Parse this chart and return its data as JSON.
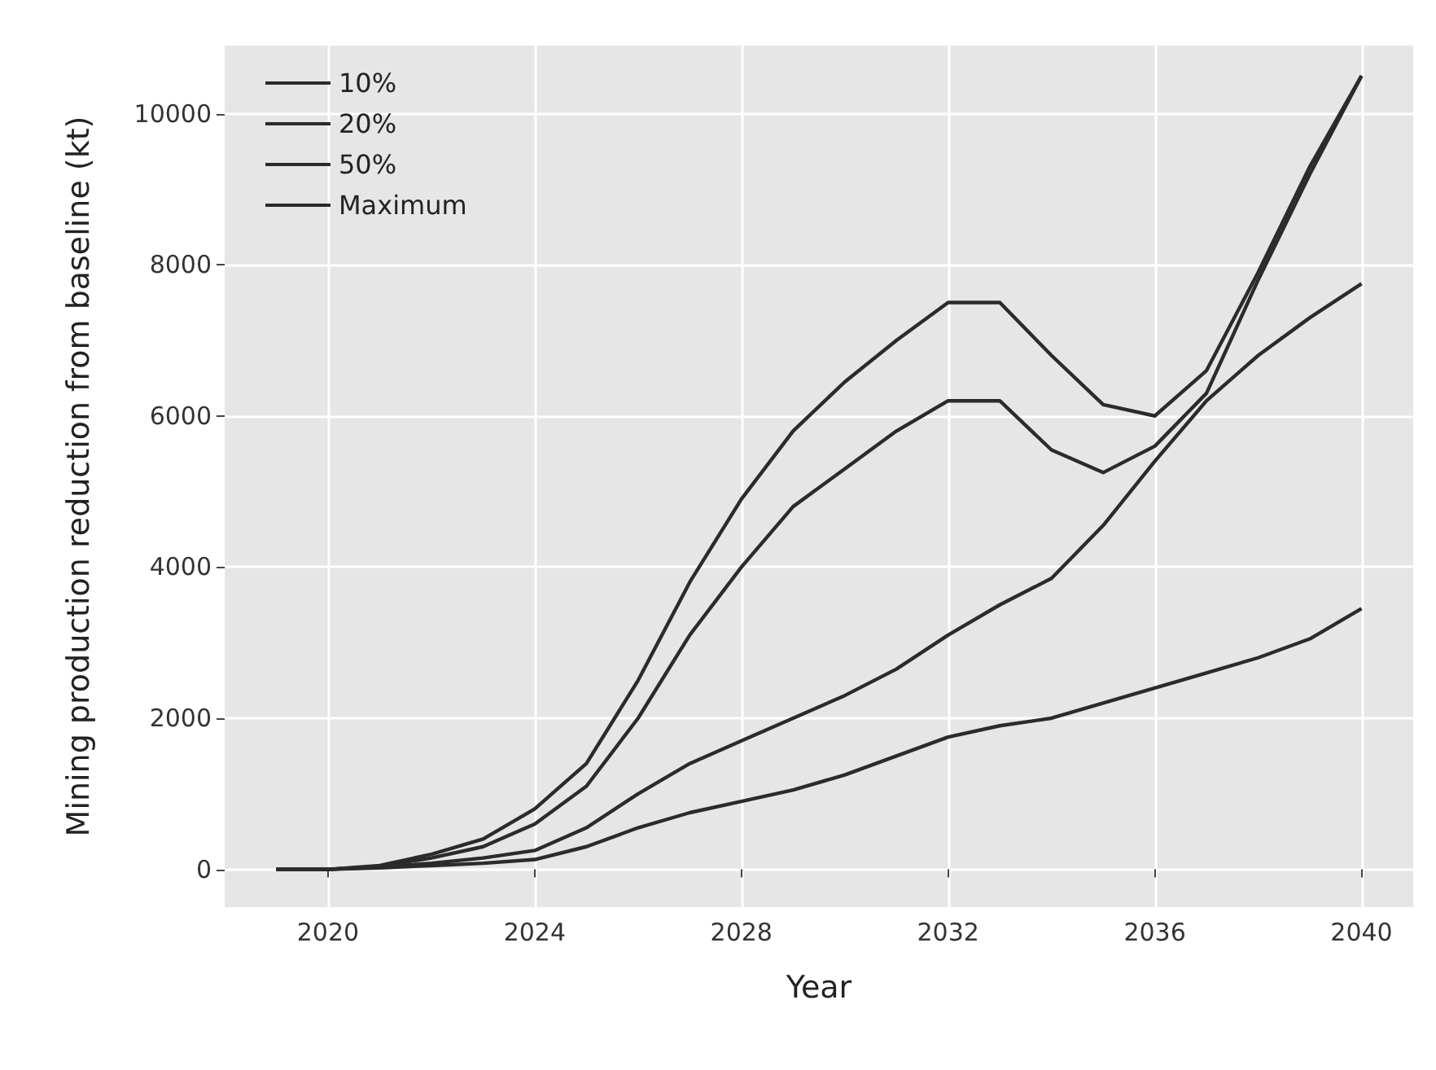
{
  "chart_data": {
    "type": "line",
    "xlabel": "Year",
    "ylabel": "Mining production reduction from baseline (kt)",
    "x": [
      2019,
      2020,
      2021,
      2022,
      2023,
      2024,
      2025,
      2026,
      2027,
      2028,
      2029,
      2030,
      2031,
      2032,
      2033,
      2034,
      2035,
      2036,
      2037,
      2038,
      2039,
      2040
    ],
    "series": [
      {
        "name": "10%",
        "color": "#2b2b2b",
        "values": [
          0,
          0,
          20,
          50,
          80,
          130,
          300,
          550,
          750,
          900,
          1050,
          1250,
          1500,
          1750,
          1900,
          2000,
          2200,
          2400,
          2600,
          2800,
          3050,
          3450
        ]
      },
      {
        "name": "20%",
        "color": "#2b2b2b",
        "values": [
          0,
          0,
          30,
          80,
          150,
          250,
          550,
          1000,
          1400,
          1700,
          2000,
          2300,
          2650,
          3100,
          3500,
          3850,
          4550,
          5400,
          6200,
          6800,
          7300,
          7750
        ]
      },
      {
        "name": "50%",
        "color": "#2b2b2b",
        "values": [
          0,
          0,
          40,
          150,
          300,
          600,
          1100,
          2000,
          3100,
          4000,
          4800,
          5300,
          5800,
          6200,
          6200,
          5550,
          5250,
          5600,
          6300,
          7800,
          9200,
          10500
        ]
      },
      {
        "name": "Maximum",
        "color": "#2b2b2b",
        "values": [
          0,
          0,
          50,
          200,
          400,
          800,
          1400,
          2500,
          3800,
          4900,
          5800,
          6450,
          7000,
          7500,
          7500,
          6800,
          6150,
          6000,
          6600,
          7900,
          9300,
          10500
        ]
      }
    ],
    "xlim": [
      2018,
      2041
    ],
    "xticks": [
      2020,
      2024,
      2028,
      2032,
      2036,
      2040
    ],
    "ylim": [
      -500,
      10900
    ],
    "yticks": [
      0,
      2000,
      4000,
      6000,
      8000,
      10000
    ],
    "grid": true,
    "legend": "top left",
    "marker": "none",
    "line_style": "solid"
  }
}
